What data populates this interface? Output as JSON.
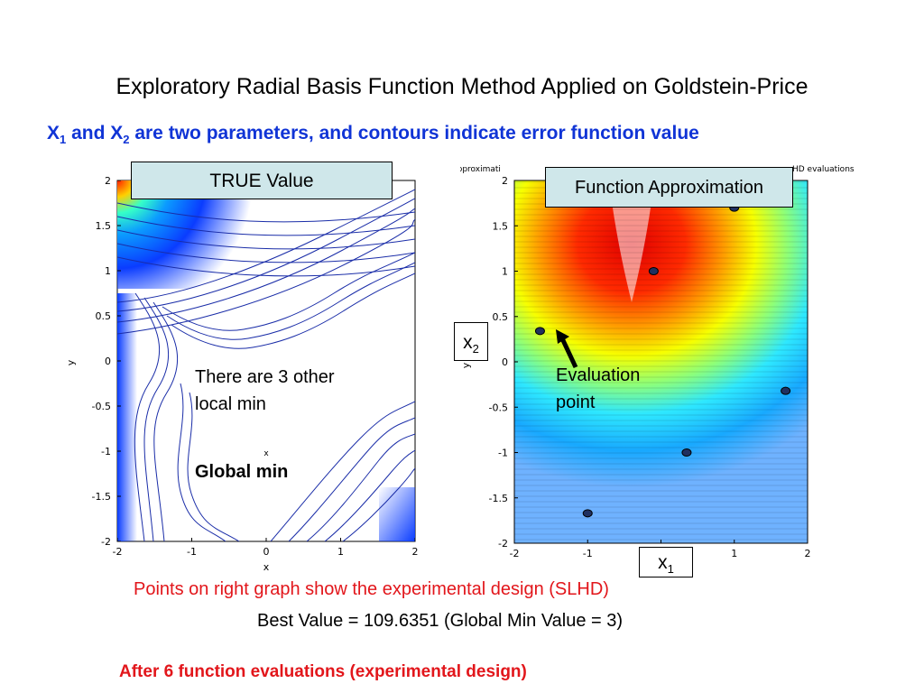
{
  "slide": {
    "title": "Exploratory Radial Basis Function Method Applied on Goldstein-Price",
    "subtitle": {
      "p1": "X",
      "s1": "1",
      "p2": " and X",
      "s2": "2",
      "p3": " are two parameters, and contours indicate error function value"
    },
    "notes": {
      "design": "Points on right graph show the experimental design (SLHD)",
      "best": "Best Value = 109.6351 (Global Min Value = 3)",
      "evals": "After 6 function evaluations (experimental design)"
    },
    "colors": {
      "title_text": "#000000",
      "subtitle_text": "#1034d6",
      "note_red": "#e2161b",
      "label_box": "#cfe7ea",
      "contour_blue": "#1a2da8",
      "arrow": "#000000"
    }
  },
  "left_plot": {
    "box_label": "TRUE Value",
    "annotation_line1": "There are 3 other",
    "annotation_line2": "local min",
    "global_min_label": "Global min",
    "marker": "x",
    "xlabel": "x",
    "ylabel": "y"
  },
  "right_plot": {
    "box_label": "Function Approximation",
    "header_left": "RBF Approximati",
    "header_right": "HD evaluations",
    "x2_label": "x",
    "x2_sub": "2",
    "x1_label": "x",
    "x1_sub": "1",
    "ylabel": "y",
    "evaluation_line1": "Evaluation",
    "evaluation_line2": "point"
  },
  "chart_data": [
    {
      "type": "contour",
      "name": "TRUE Value",
      "xlim": [
        -2,
        2
      ],
      "ylim": [
        -2,
        2
      ],
      "x_ticks": [
        "-2",
        "-1",
        "0",
        "1",
        "2"
      ],
      "y_ticks": [
        "2",
        "1.5",
        "1",
        "0.5",
        "0",
        "-0.5",
        "-1",
        "-1.5",
        "-2"
      ],
      "xlabel": "x",
      "ylabel": "y",
      "global_min_marker": {
        "x": 0,
        "y": -1,
        "symbol": "x"
      }
    },
    {
      "type": "contour",
      "name": "Function Approximation",
      "xlim": [
        -2,
        2
      ],
      "ylim": [
        -2,
        2
      ],
      "x_ticks": [
        "-2",
        "-1",
        "0",
        "1",
        "2"
      ],
      "y_ticks": [
        "2",
        "1.5",
        "1",
        "0.5",
        "0",
        "-0.5",
        "-1",
        "-1.5",
        "-2"
      ],
      "evaluation_points": [
        {
          "x": -1.65,
          "y": 0.34
        },
        {
          "x": -0.1,
          "y": 1.0
        },
        {
          "x": 1.0,
          "y": 1.7
        },
        {
          "x": 1.7,
          "y": -0.32
        },
        {
          "x": 0.35,
          "y": -1.0
        },
        {
          "x": -1.0,
          "y": -1.67
        }
      ]
    }
  ]
}
